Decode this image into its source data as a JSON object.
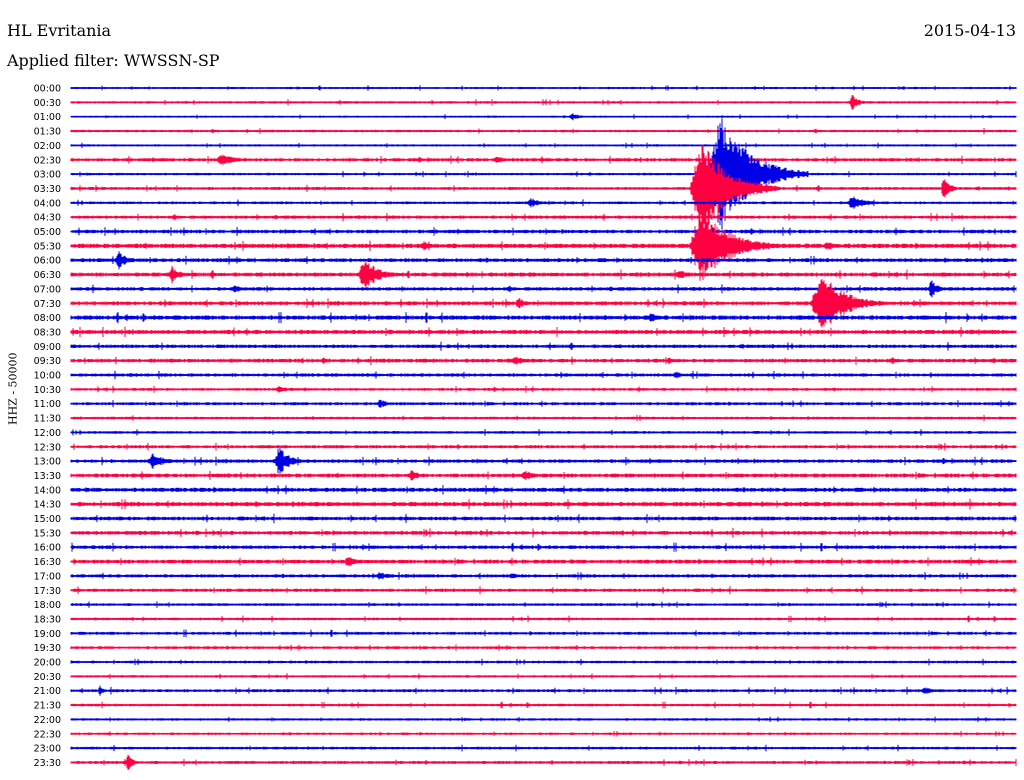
{
  "header": {
    "station": "HL Evritania",
    "filter_label": "Applied filter:",
    "filter_value": "WWSSN-SP",
    "date": "2015-04-13"
  },
  "colors": {
    "even_row": "#0000e6",
    "odd_row": "#ff0040"
  },
  "chart_data": {
    "type": "line",
    "title": "HL Evritania",
    "ylabel": "HHZ - 50000",
    "row_labels": [
      "00:00",
      "00:30",
      "01:00",
      "01:30",
      "02:00",
      "02:30",
      "03:00",
      "03:30",
      "04:00",
      "04:30",
      "05:00",
      "05:30",
      "06:00",
      "06:30",
      "07:00",
      "07:30",
      "08:00",
      "08:30",
      "09:00",
      "09:30",
      "10:00",
      "10:30",
      "11:00",
      "11:30",
      "12:00",
      "12:30",
      "13:00",
      "13:30",
      "14:00",
      "14:30",
      "15:00",
      "15:30",
      "16:00",
      "16:30",
      "17:00",
      "17:30",
      "18:00",
      "18:30",
      "19:00",
      "19:30",
      "20:00",
      "20:30",
      "21:00",
      "21:30",
      "22:00",
      "22:30",
      "23:00",
      "23:30"
    ],
    "x_range_minutes": [
      0,
      30
    ],
    "noise_level": [
      0.8,
      0.9,
      0.7,
      0.9,
      0.8,
      1.2,
      0.9,
      1.1,
      1.0,
      1.2,
      1.3,
      1.6,
      1.4,
      1.5,
      1.3,
      1.4,
      1.6,
      1.5,
      1.3,
      1.4,
      1.2,
      1.0,
      1.1,
      1.0,
      1.0,
      1.2,
      1.3,
      1.4,
      1.5,
      1.6,
      1.4,
      1.4,
      1.3,
      1.4,
      1.2,
      1.2,
      1.0,
      1.0,
      1.1,
      1.0,
      1.0,
      0.9,
      1.1,
      1.0,
      0.9,
      0.9,
      1.0,
      1.1
    ],
    "events": [
      {
        "row": 1,
        "minute": 24.8,
        "amplitude": 9,
        "duration_min": 0.6
      },
      {
        "row": 2,
        "minute": 15.9,
        "amplitude": 4,
        "duration_min": 0.8
      },
      {
        "row": 5,
        "minute": 4.8,
        "amplitude": 6,
        "duration_min": 1.5
      },
      {
        "row": 5,
        "minute": 13.5,
        "amplitude": 4,
        "duration_min": 1.2
      },
      {
        "row": 6,
        "minute": 20.6,
        "amplitude": 60,
        "duration_min": 2.8
      },
      {
        "row": 7,
        "minute": 20.0,
        "amplitude": 50,
        "duration_min": 2.5
      },
      {
        "row": 7,
        "minute": 27.7,
        "amplitude": 14,
        "duration_min": 0.6
      },
      {
        "row": 8,
        "minute": 14.6,
        "amplitude": 5,
        "duration_min": 0.9
      },
      {
        "row": 8,
        "minute": 24.8,
        "amplitude": 7,
        "duration_min": 1.4
      },
      {
        "row": 11,
        "minute": 11.2,
        "amplitude": 5,
        "duration_min": 1.2
      },
      {
        "row": 11,
        "minute": 20.0,
        "amplitude": 40,
        "duration_min": 2.5
      },
      {
        "row": 11,
        "minute": 24.0,
        "amplitude": 5,
        "duration_min": 1.0
      },
      {
        "row": 12,
        "minute": 1.5,
        "amplitude": 11,
        "duration_min": 0.7
      },
      {
        "row": 13,
        "minute": 3.2,
        "amplitude": 9,
        "duration_min": 0.7
      },
      {
        "row": 13,
        "minute": 9.3,
        "amplitude": 16,
        "duration_min": 1.4
      },
      {
        "row": 13,
        "minute": 19.3,
        "amplitude": 5,
        "duration_min": 1.0
      },
      {
        "row": 14,
        "minute": 5.2,
        "amplitude": 4,
        "duration_min": 0.8
      },
      {
        "row": 14,
        "minute": 27.3,
        "amplitude": 10,
        "duration_min": 0.7
      },
      {
        "row": 15,
        "minute": 14.2,
        "amplitude": 6,
        "duration_min": 0.8
      },
      {
        "row": 15,
        "minute": 23.8,
        "amplitude": 32,
        "duration_min": 2.2
      },
      {
        "row": 16,
        "minute": 18.4,
        "amplitude": 5,
        "duration_min": 1.0
      },
      {
        "row": 19,
        "minute": 14.1,
        "amplitude": 5,
        "duration_min": 1.0
      },
      {
        "row": 19,
        "minute": 19.0,
        "amplitude": 4,
        "duration_min": 0.9
      },
      {
        "row": 20,
        "minute": 19.2,
        "amplitude": 4,
        "duration_min": 0.8
      },
      {
        "row": 21,
        "minute": 6.6,
        "amplitude": 4,
        "duration_min": 0.8
      },
      {
        "row": 22,
        "minute": 9.8,
        "amplitude": 5,
        "duration_min": 0.8
      },
      {
        "row": 26,
        "minute": 2.6,
        "amplitude": 8,
        "duration_min": 1.2
      },
      {
        "row": 26,
        "minute": 6.6,
        "amplitude": 15,
        "duration_min": 1.0
      },
      {
        "row": 27,
        "minute": 10.8,
        "amplitude": 6,
        "duration_min": 0.9
      },
      {
        "row": 27,
        "minute": 14.4,
        "amplitude": 6,
        "duration_min": 0.9
      },
      {
        "row": 33,
        "minute": 8.8,
        "amplitude": 6,
        "duration_min": 1.0
      },
      {
        "row": 34,
        "minute": 9.8,
        "amplitude": 5,
        "duration_min": 0.8
      },
      {
        "row": 34,
        "minute": 14.0,
        "amplitude": 4,
        "duration_min": 0.8
      },
      {
        "row": 42,
        "minute": 0.9,
        "amplitude": 7,
        "duration_min": 0.3
      },
      {
        "row": 42,
        "minute": 27.1,
        "amplitude": 4,
        "duration_min": 1.0
      },
      {
        "row": 47,
        "minute": 1.8,
        "amplitude": 9,
        "duration_min": 0.5
      }
    ]
  }
}
